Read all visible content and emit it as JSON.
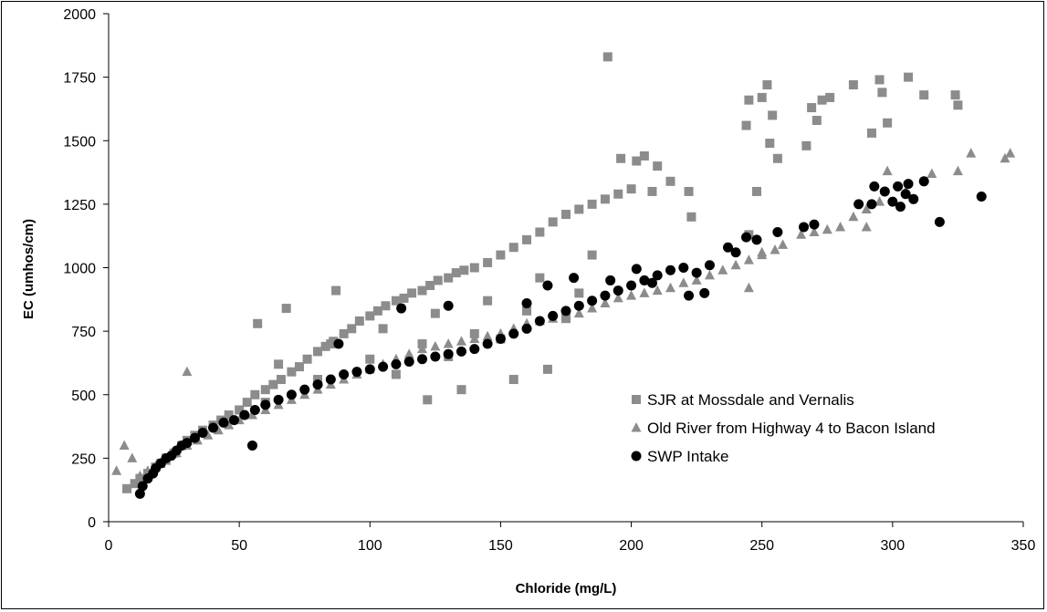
{
  "chart_data": {
    "type": "scatter",
    "xlabel": "Chloride (mg/L)",
    "ylabel": "EC (umhos/cm)",
    "xlim": [
      0,
      350
    ],
    "ylim": [
      0,
      2000
    ],
    "xticks": [
      "0",
      "50",
      "100",
      "150",
      "200",
      "250",
      "300",
      "350"
    ],
    "yticks": [
      "0",
      "250",
      "500",
      "750",
      "1000",
      "1250",
      "1500",
      "1750",
      "2000"
    ],
    "grid": false,
    "legend": "inside-bottom-right",
    "series": [
      {
        "name": "SJR at Mossdale and Vernalis",
        "marker": "square",
        "color": "#8c8c8c",
        "points": [
          [
            7,
            130
          ],
          [
            10,
            150
          ],
          [
            12,
            170
          ],
          [
            15,
            190
          ],
          [
            18,
            215
          ],
          [
            20,
            230
          ],
          [
            22,
            250
          ],
          [
            25,
            270
          ],
          [
            28,
            300
          ],
          [
            30,
            320
          ],
          [
            33,
            340
          ],
          [
            36,
            360
          ],
          [
            40,
            380
          ],
          [
            43,
            400
          ],
          [
            46,
            420
          ],
          [
            50,
            440
          ],
          [
            53,
            470
          ],
          [
            56,
            500
          ],
          [
            60,
            520
          ],
          [
            63,
            540
          ],
          [
            66,
            560
          ],
          [
            70,
            590
          ],
          [
            73,
            610
          ],
          [
            76,
            640
          ],
          [
            80,
            670
          ],
          [
            83,
            690
          ],
          [
            86,
            710
          ],
          [
            90,
            740
          ],
          [
            93,
            760
          ],
          [
            96,
            790
          ],
          [
            100,
            810
          ],
          [
            103,
            830
          ],
          [
            106,
            850
          ],
          [
            110,
            870
          ],
          [
            113,
            880
          ],
          [
            116,
            900
          ],
          [
            120,
            910
          ],
          [
            123,
            930
          ],
          [
            126,
            950
          ],
          [
            130,
            960
          ],
          [
            133,
            980
          ],
          [
            136,
            990
          ],
          [
            140,
            1000
          ],
          [
            145,
            1020
          ],
          [
            150,
            1050
          ],
          [
            155,
            1080
          ],
          [
            160,
            1110
          ],
          [
            165,
            1140
          ],
          [
            170,
            1180
          ],
          [
            175,
            1210
          ],
          [
            180,
            1230
          ],
          [
            185,
            1250
          ],
          [
            190,
            1270
          ],
          [
            195,
            1290
          ],
          [
            200,
            1310
          ],
          [
            57,
            780
          ],
          [
            68,
            840
          ],
          [
            87,
            910
          ],
          [
            191,
            1830
          ],
          [
            196,
            1430
          ],
          [
            202,
            1420
          ],
          [
            205,
            1440
          ],
          [
            210,
            1400
          ],
          [
            208,
            1300
          ],
          [
            215,
            1340
          ],
          [
            222,
            1300
          ],
          [
            223,
            1200
          ],
          [
            244,
            1560
          ],
          [
            245,
            1660
          ],
          [
            250,
            1670
          ],
          [
            252,
            1720
          ],
          [
            254,
            1600
          ],
          [
            256,
            1430
          ],
          [
            253,
            1490
          ],
          [
            248,
            1300
          ],
          [
            245,
            1130
          ],
          [
            267,
            1480
          ],
          [
            269,
            1630
          ],
          [
            271,
            1580
          ],
          [
            273,
            1660
          ],
          [
            276,
            1670
          ],
          [
            285,
            1720
          ],
          [
            292,
            1530
          ],
          [
            295,
            1740
          ],
          [
            296,
            1690
          ],
          [
            298,
            1570
          ],
          [
            306,
            1750
          ],
          [
            312,
            1680
          ],
          [
            324,
            1680
          ],
          [
            325,
            1640
          ],
          [
            60,
            470
          ],
          [
            80,
            560
          ],
          [
            100,
            640
          ],
          [
            120,
            700
          ],
          [
            140,
            740
          ],
          [
            160,
            830
          ],
          [
            180,
            900
          ],
          [
            65,
            620
          ],
          [
            85,
            700
          ],
          [
            105,
            760
          ],
          [
            125,
            820
          ],
          [
            145,
            870
          ],
          [
            165,
            960
          ],
          [
            185,
            1050
          ],
          [
            110,
            580
          ],
          [
            130,
            650
          ],
          [
            150,
            720
          ],
          [
            175,
            800
          ],
          [
            122,
            480
          ],
          [
            135,
            520
          ],
          [
            155,
            560
          ],
          [
            168,
            600
          ]
        ]
      },
      {
        "name": "Old River from Highway 4 to Bacon Island",
        "marker": "triangle",
        "color": "#8c8c8c",
        "points": [
          [
            3,
            200
          ],
          [
            6,
            300
          ],
          [
            9,
            250
          ],
          [
            12,
            180
          ],
          [
            15,
            200
          ],
          [
            18,
            220
          ],
          [
            22,
            240
          ],
          [
            26,
            270
          ],
          [
            30,
            300
          ],
          [
            34,
            320
          ],
          [
            38,
            340
          ],
          [
            42,
            360
          ],
          [
            46,
            380
          ],
          [
            50,
            400
          ],
          [
            55,
            420
          ],
          [
            60,
            440
          ],
          [
            65,
            460
          ],
          [
            70,
            480
          ],
          [
            75,
            500
          ],
          [
            80,
            520
          ],
          [
            85,
            540
          ],
          [
            90,
            560
          ],
          [
            95,
            580
          ],
          [
            100,
            600
          ],
          [
            105,
            620
          ],
          [
            110,
            640
          ],
          [
            115,
            660
          ],
          [
            120,
            680
          ],
          [
            125,
            690
          ],
          [
            130,
            700
          ],
          [
            135,
            710
          ],
          [
            140,
            720
          ],
          [
            145,
            730
          ],
          [
            150,
            740
          ],
          [
            155,
            760
          ],
          [
            160,
            780
          ],
          [
            165,
            790
          ],
          [
            170,
            800
          ],
          [
            175,
            810
          ],
          [
            180,
            820
          ],
          [
            185,
            840
          ],
          [
            190,
            860
          ],
          [
            195,
            880
          ],
          [
            200,
            890
          ],
          [
            205,
            900
          ],
          [
            210,
            910
          ],
          [
            215,
            920
          ],
          [
            220,
            940
          ],
          [
            225,
            950
          ],
          [
            230,
            970
          ],
          [
            235,
            990
          ],
          [
            240,
            1010
          ],
          [
            245,
            1030
          ],
          [
            250,
            1050
          ],
          [
            255,
            1070
          ],
          [
            258,
            1090
          ],
          [
            265,
            1130
          ],
          [
            270,
            1140
          ],
          [
            275,
            1150
          ],
          [
            280,
            1160
          ],
          [
            285,
            1200
          ],
          [
            290,
            1230
          ],
          [
            295,
            1260
          ],
          [
            298,
            1380
          ],
          [
            305,
            1300
          ],
          [
            315,
            1370
          ],
          [
            325,
            1380
          ],
          [
            330,
            1450
          ],
          [
            343,
            1430
          ],
          [
            345,
            1450
          ],
          [
            30,
            590
          ],
          [
            245,
            920
          ],
          [
            250,
            1060
          ],
          [
            290,
            1160
          ]
        ]
      },
      {
        "name": "SWP Intake",
        "marker": "circle",
        "color": "#000000",
        "points": [
          [
            12,
            110
          ],
          [
            13,
            140
          ],
          [
            15,
            170
          ],
          [
            17,
            190
          ],
          [
            18,
            210
          ],
          [
            20,
            230
          ],
          [
            22,
            250
          ],
          [
            24,
            260
          ],
          [
            26,
            280
          ],
          [
            28,
            300
          ],
          [
            30,
            310
          ],
          [
            33,
            330
          ],
          [
            36,
            350
          ],
          [
            40,
            370
          ],
          [
            44,
            390
          ],
          [
            48,
            400
          ],
          [
            52,
            420
          ],
          [
            56,
            440
          ],
          [
            60,
            460
          ],
          [
            65,
            480
          ],
          [
            70,
            500
          ],
          [
            75,
            520
          ],
          [
            80,
            540
          ],
          [
            85,
            560
          ],
          [
            90,
            580
          ],
          [
            95,
            590
          ],
          [
            100,
            600
          ],
          [
            105,
            610
          ],
          [
            110,
            620
          ],
          [
            115,
            630
          ],
          [
            120,
            640
          ],
          [
            125,
            650
          ],
          [
            130,
            660
          ],
          [
            135,
            670
          ],
          [
            140,
            680
          ],
          [
            145,
            700
          ],
          [
            150,
            720
          ],
          [
            155,
            740
          ],
          [
            160,
            760
          ],
          [
            165,
            790
          ],
          [
            170,
            810
          ],
          [
            175,
            830
          ],
          [
            180,
            850
          ],
          [
            185,
            870
          ],
          [
            190,
            890
          ],
          [
            195,
            910
          ],
          [
            200,
            930
          ],
          [
            205,
            950
          ],
          [
            210,
            970
          ],
          [
            215,
            990
          ],
          [
            220,
            1000
          ],
          [
            225,
            980
          ],
          [
            230,
            1010
          ],
          [
            237,
            1080
          ],
          [
            244,
            1120
          ],
          [
            248,
            1110
          ],
          [
            256,
            1140
          ],
          [
            266,
            1160
          ],
          [
            270,
            1170
          ],
          [
            287,
            1250
          ],
          [
            292,
            1250
          ],
          [
            293,
            1320
          ],
          [
            297,
            1300
          ],
          [
            300,
            1260
          ],
          [
            302,
            1320
          ],
          [
            303,
            1240
          ],
          [
            305,
            1290
          ],
          [
            306,
            1330
          ],
          [
            308,
            1270
          ],
          [
            312,
            1340
          ],
          [
            318,
            1180
          ],
          [
            334,
            1280
          ],
          [
            55,
            300
          ],
          [
            88,
            700
          ],
          [
            112,
            840
          ],
          [
            130,
            850
          ],
          [
            160,
            860
          ],
          [
            168,
            930
          ],
          [
            178,
            960
          ],
          [
            192,
            950
          ],
          [
            202,
            995
          ],
          [
            208,
            940
          ],
          [
            222,
            890
          ],
          [
            228,
            900
          ],
          [
            240,
            1060
          ]
        ]
      }
    ]
  }
}
